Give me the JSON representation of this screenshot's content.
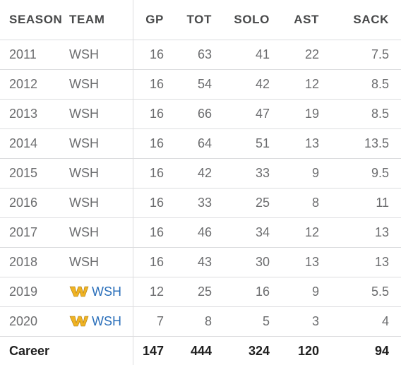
{
  "columns": {
    "season": "SEASON",
    "team": "TEAM",
    "gp": "GP",
    "tot": "TOT",
    "solo": "SOLO",
    "ast": "AST",
    "sack": "SACK"
  },
  "rows": [
    {
      "season": "2011",
      "team": "WSH",
      "gp": "16",
      "tot": "63",
      "solo": "41",
      "ast": "22",
      "sack": "7.5"
    },
    {
      "season": "2012",
      "team": "WSH",
      "gp": "16",
      "tot": "54",
      "solo": "42",
      "ast": "12",
      "sack": "8.5"
    },
    {
      "season": "2013",
      "team": "WSH",
      "gp": "16",
      "tot": "66",
      "solo": "47",
      "ast": "19",
      "sack": "8.5"
    },
    {
      "season": "2014",
      "team": "WSH",
      "gp": "16",
      "tot": "64",
      "solo": "51",
      "ast": "13",
      "sack": "13.5"
    },
    {
      "season": "2015",
      "team": "WSH",
      "gp": "16",
      "tot": "42",
      "solo": "33",
      "ast": "9",
      "sack": "9.5"
    },
    {
      "season": "2016",
      "team": "WSH",
      "gp": "16",
      "tot": "33",
      "solo": "25",
      "ast": "8",
      "sack": "11"
    },
    {
      "season": "2017",
      "team": "WSH",
      "gp": "16",
      "tot": "46",
      "solo": "34",
      "ast": "12",
      "sack": "13"
    },
    {
      "season": "2018",
      "team": "WSH",
      "gp": "16",
      "tot": "43",
      "solo": "30",
      "ast": "13",
      "sack": "13"
    },
    {
      "season": "2019",
      "team": "WSH",
      "team_logo": "washington-w-logo",
      "gp": "12",
      "tot": "25",
      "solo": "16",
      "ast": "9",
      "sack": "5.5"
    },
    {
      "season": "2020",
      "team": "WSH",
      "team_logo": "washington-w-logo",
      "gp": "7",
      "tot": "8",
      "solo": "5",
      "ast": "3",
      "sack": "4"
    }
  ],
  "career": {
    "label": "Career",
    "gp": "147",
    "tot": "444",
    "solo": "324",
    "ast": "120",
    "sack": "94"
  },
  "colors": {
    "text": "#6c6d6f",
    "header": "#48494a",
    "career": "#1f1f1f",
    "link": "#2a6fba",
    "logo_gold": "#f0b323",
    "divider": "#dcdddf"
  }
}
